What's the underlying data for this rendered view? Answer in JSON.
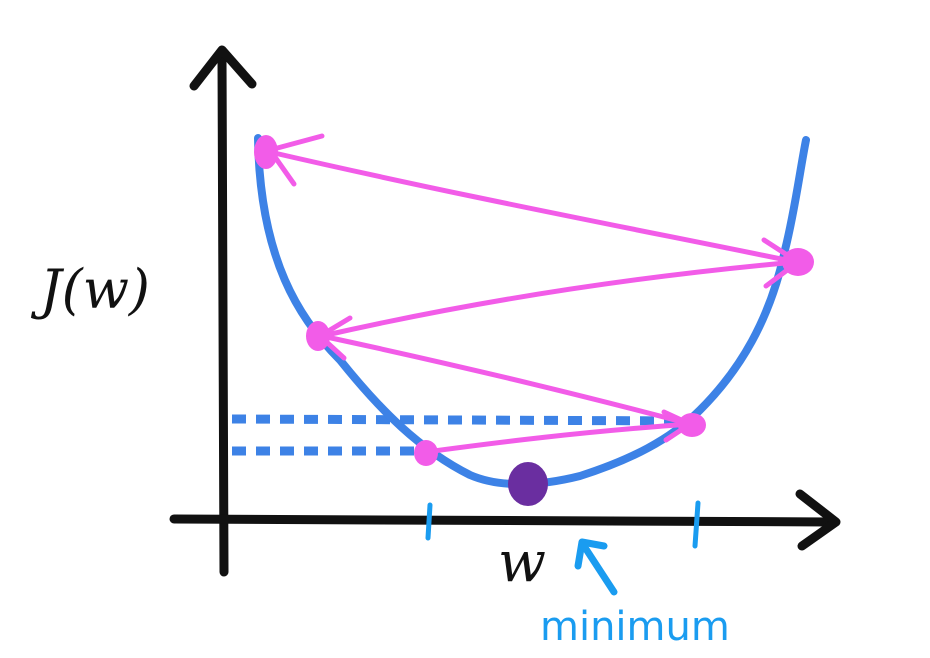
{
  "labels": {
    "y_axis": "J(w)",
    "x_axis": "w",
    "annotation": "minimum"
  },
  "colors": {
    "axis": "#111111",
    "curve": "#3d82e6",
    "steps": "#f25ce8",
    "minimum_point": "#6a2ea0",
    "annotation": "#1a9cf0",
    "ticks": "#1a9cf0",
    "dotted_guides": "#3d82e6"
  },
  "icons": {
    "minimum_arrow": "arrow-up-left-icon",
    "axis_heads": "arrowhead-icon"
  }
}
